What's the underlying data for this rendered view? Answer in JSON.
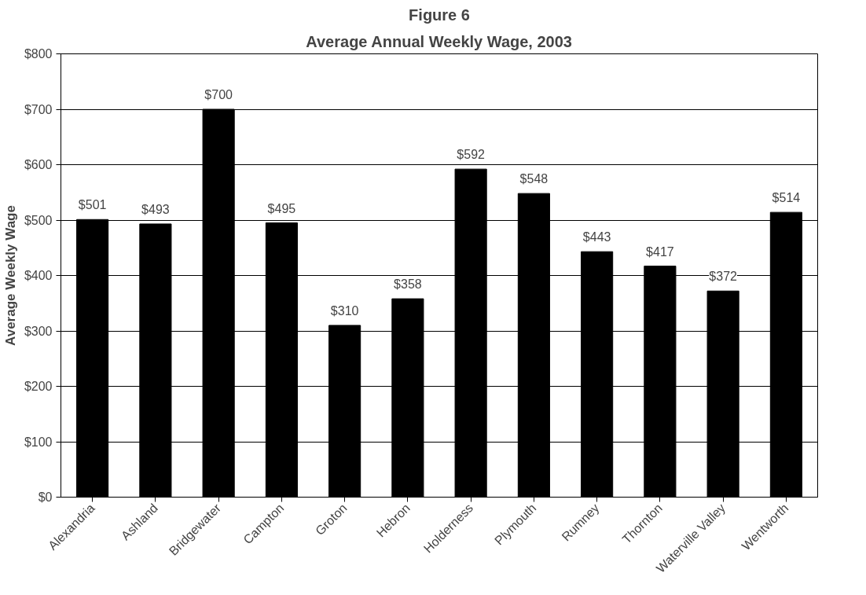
{
  "chart_data": {
    "type": "bar",
    "title": "Figure 6",
    "subtitle": "Average Annual Weekly Wage, 2003",
    "ylabel": "Average Weekly Wage",
    "categories": [
      "Alexandria",
      "Ashland",
      "Bridgewater",
      "Campton",
      "Groton",
      "Hebron",
      "Holderness",
      "Plymouth",
      "Rumney",
      "Thornton",
      "Waterville Valley",
      "Wentworth"
    ],
    "values": [
      501,
      493,
      700,
      495,
      310,
      358,
      592,
      548,
      443,
      417,
      372,
      514
    ],
    "value_labels": [
      "$501",
      "$493",
      "$700",
      "$495",
      "$310",
      "$358",
      "$592",
      "$548",
      "$443",
      "$417",
      "$372",
      "$514"
    ],
    "color": "#000000",
    "ylim": [
      0,
      800
    ],
    "yticks": [
      {
        "value": 0,
        "label": "$0"
      },
      {
        "value": 100,
        "label": "$100"
      },
      {
        "value": 200,
        "label": "$200"
      },
      {
        "value": 300,
        "label": "$300"
      },
      {
        "value": 400,
        "label": "$400"
      },
      {
        "value": 500,
        "label": "$500"
      },
      {
        "value": 600,
        "label": "$600"
      },
      {
        "value": 700,
        "label": "$700"
      },
      {
        "value": 800,
        "label": "$800"
      }
    ],
    "grid": "y"
  }
}
